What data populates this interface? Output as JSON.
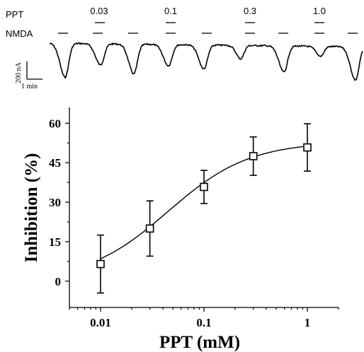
{
  "chart_data": [
    {
      "type": "line",
      "panel": "trace",
      "row_labels": [
        "PPT",
        "NMDA"
      ],
      "ppt_concentrations": [
        "0.03",
        "0.1",
        "0.3",
        "1.0"
      ],
      "scale_bar": {
        "y_label": "200 nA",
        "x_label": "1 min"
      }
    },
    {
      "type": "scatter",
      "panel": "concentration-response",
      "xlabel": "PPT (mM)",
      "ylabel": "Inhibition (%)",
      "x_scale": "log",
      "xlim": [
        0.005,
        2
      ],
      "ylim": [
        -10,
        66
      ],
      "x_ticks": [
        "0.01",
        "0.1",
        "1"
      ],
      "y_ticks": [
        "60",
        "45",
        "30",
        "15",
        "0"
      ],
      "x": [
        0.01,
        0.03,
        0.1,
        0.3,
        1.0
      ],
      "y": [
        6.5,
        20.0,
        35.8,
        47.5,
        50.8
      ],
      "error": [
        11.0,
        10.5,
        6.3,
        7.3,
        9.0
      ],
      "fit": {
        "bottom": 0,
        "top": 53,
        "ec50": 0.045,
        "hill": 1.1
      }
    }
  ]
}
